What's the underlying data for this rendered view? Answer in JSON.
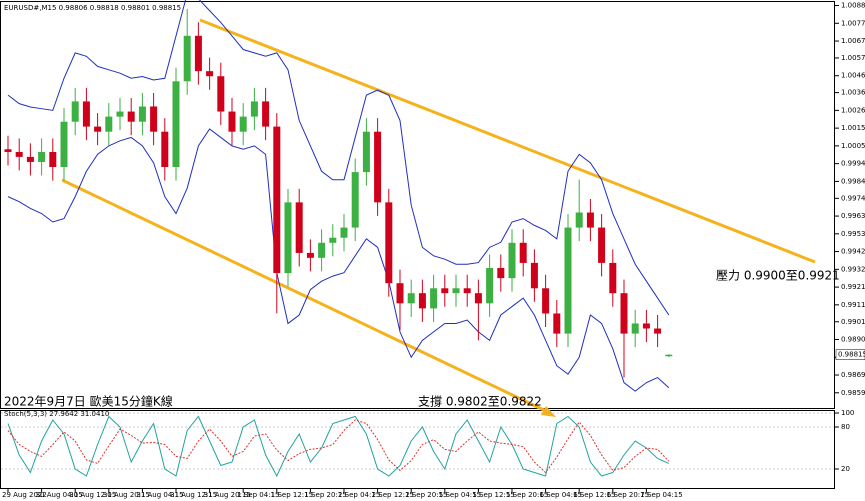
{
  "chart_data": [
    {
      "type": "candlestick",
      "title": "EURUSD#,M15  0.98806 0.98818 0.98801 0.98815",
      "annotations": [
        "2022年9月7日 歐美15分鐘K線",
        "壓力 0.9900至0.9921",
        "支撐 0.9802至0.9822"
      ],
      "last_price": 0.98815,
      "categories": [
        "29 Aug 2022",
        null,
        null,
        "30 Aug 04:15",
        null,
        null,
        "30 Aug 12:15",
        null,
        null,
        "30 Aug 20:15",
        null,
        null,
        "31 Aug 04:15",
        null,
        null,
        "31 Aug 12:15",
        null,
        null,
        "31 Aug 20:15",
        null,
        null,
        "1 Sep 04:15",
        null,
        null,
        "1 Sep 12:15",
        null,
        null,
        "1 Sep 20:15",
        null,
        null,
        "2 Sep 04:15",
        null,
        null,
        "2 Sep 12:15",
        null,
        null,
        "2 Sep 20:15",
        null,
        null,
        "5 Sep 04:15",
        null,
        null,
        "5 Sep 12:15",
        null,
        null,
        "5 Sep 20:15",
        null,
        null,
        "6 Sep 04:15",
        null,
        null,
        "6 Sep 12:15",
        null,
        null,
        "6 Sep 20:15",
        null,
        null,
        "7 Sep 04:15",
        null,
        null
      ],
      "open": [
        1.0003,
        1.00014,
        0.99985,
        0.99955,
        1.00014,
        0.99925,
        1.00193,
        1.00313,
        1.00164,
        1.00134,
        1.00223,
        1.00253,
        1.00193,
        1.00283,
        1.00134,
        0.99925,
        1.00432,
        1.00701,
        1.00492,
        1.00462,
        1.00253,
        1.00134,
        1.00223,
        1.00313,
        1.00164,
        0.99298,
        0.99716,
        0.99417,
        0.99388,
        0.99477,
        0.99507,
        0.99567,
        0.99895,
        1.00134,
        0.99716,
        0.99238,
        0.99119,
        0.99179,
        0.99089,
        0.99208,
        0.99179,
        0.99208,
        0.99179,
        0.99119,
        0.99328,
        0.99268,
        0.99477,
        0.99358,
        0.99208,
        0.99059,
        0.9894,
        0.99567,
        0.99656,
        0.99567,
        0.99358,
        0.99179,
        0.9894,
        0.99,
        0.9897,
        0.98806
      ],
      "high": [
        1.0011,
        1.00094,
        1.00065,
        1.00094,
        1.00094,
        1.00273,
        1.00393,
        1.00393,
        1.00244,
        1.00303,
        1.00333,
        1.00333,
        1.00363,
        1.00363,
        1.00214,
        1.00512,
        1.0086,
        1.00781,
        1.00572,
        1.00542,
        1.00333,
        1.00303,
        1.00393,
        1.00393,
        1.00244,
        0.99796,
        0.99796,
        0.99497,
        0.99557,
        0.99587,
        0.99647,
        0.99975,
        1.00214,
        1.00214,
        0.99796,
        0.99318,
        0.99259,
        0.99259,
        0.99288,
        0.99288,
        0.99288,
        0.99288,
        0.99259,
        0.99408,
        0.99408,
        0.99557,
        0.99557,
        0.99438,
        0.99288,
        0.99139,
        0.99647,
        0.9985,
        0.99736,
        0.99647,
        0.99438,
        0.99259,
        0.9908,
        0.9908,
        0.9905,
        0.98818
      ],
      "low": [
        0.99934,
        0.99905,
        0.99875,
        0.99875,
        0.99845,
        0.99845,
        1.00113,
        1.00084,
        1.00054,
        1.00054,
        1.00143,
        1.00113,
        1.00113,
        1.00054,
        0.99845,
        0.99845,
        1.00352,
        1.00412,
        1.00382,
        1.00173,
        1.00054,
        1.00054,
        1.00143,
        1.00084,
        0.9906,
        0.99218,
        0.99337,
        0.99308,
        0.99308,
        0.99397,
        0.99427,
        0.99487,
        0.99815,
        0.99636,
        0.99158,
        0.9896,
        0.99039,
        0.99009,
        0.99009,
        0.99099,
        0.99099,
        0.99099,
        0.989,
        0.99039,
        0.99188,
        0.99188,
        0.99278,
        0.99128,
        0.98979,
        0.9886,
        0.9886,
        0.99487,
        0.99487,
        0.99278,
        0.99099,
        0.9868,
        0.9886,
        0.9889,
        0.9886,
        0.98801
      ],
      "close": [
        1.00014,
        0.99985,
        0.99955,
        1.00014,
        0.99925,
        1.00193,
        1.00313,
        1.00164,
        1.00134,
        1.00223,
        1.00253,
        1.00193,
        1.00283,
        1.00134,
        0.99925,
        1.00432,
        1.00701,
        1.00492,
        1.00462,
        1.00253,
        1.00134,
        1.00223,
        1.00313,
        1.00164,
        0.99298,
        0.99716,
        0.99417,
        0.99388,
        0.99477,
        0.99507,
        0.99567,
        0.99895,
        1.00134,
        0.99716,
        0.99238,
        0.99119,
        0.99179,
        0.99089,
        0.99208,
        0.99179,
        0.99208,
        0.99179,
        0.99119,
        0.99328,
        0.99268,
        0.99477,
        0.99358,
        0.99208,
        0.99059,
        0.9894,
        0.99567,
        0.99656,
        0.99567,
        0.99358,
        0.99179,
        0.9894,
        0.99,
        0.9897,
        0.9894,
        0.98815
      ],
      "up_color": "#3cb043",
      "down_color": "#d0021b",
      "bands": {
        "color": "#1f2fbf",
        "upper": [
          1.0035,
          1.003,
          1.0028,
          1.0027,
          1.0026,
          1.0045,
          1.006,
          1.0058,
          1.0052,
          1.005,
          1.0048,
          1.0045,
          1.0046,
          1.0044,
          1.0045,
          1.007,
          1.0095,
          1.0092,
          1.0085,
          1.0078,
          1.007,
          1.0062,
          1.006,
          1.0058,
          1.006,
          1.005,
          1.002,
          1.0005,
          0.999,
          0.9985,
          0.9985,
          1.001,
          1.0035,
          1.0038,
          1.0035,
          1.002,
          0.997,
          0.9945,
          0.994,
          0.9938,
          0.9935,
          0.9935,
          0.9936,
          0.9945,
          0.9948,
          0.996,
          0.9962,
          0.9958,
          0.9955,
          0.995,
          0.999,
          1.0,
          0.9995,
          0.9985,
          0.9965,
          0.995,
          0.9935,
          0.9925,
          0.9915,
          0.9905
        ],
        "lower": [
          0.9975,
          0.9972,
          0.9968,
          0.9965,
          0.996,
          0.9962,
          0.9975,
          0.999,
          1.0,
          1.0005,
          1.0008,
          1.001,
          1.0005,
          0.9995,
          0.9975,
          0.9965,
          0.998,
          1.0005,
          1.0015,
          1.001,
          1.0005,
          1.0003,
          1.0005,
          1.0,
          0.993,
          0.99,
          0.9905,
          0.992,
          0.9925,
          0.9928,
          0.993,
          0.994,
          0.995,
          0.9945,
          0.9925,
          0.9895,
          0.988,
          0.989,
          0.9895,
          0.99,
          0.99,
          0.9902,
          0.9895,
          0.989,
          0.9905,
          0.991,
          0.9915,
          0.9905,
          0.989,
          0.9875,
          0.987,
          0.988,
          0.9905,
          0.99,
          0.9885,
          0.9865,
          0.986,
          0.9865,
          0.9868,
          0.9862
        ]
      },
      "ylim": [
        0.985,
        1.00895
      ],
      "yticks": [
        {
          "value": 1.0088,
          "label": "1.00880"
        },
        {
          "value": 1.00775,
          "label": "1.00775"
        },
        {
          "value": 1.0067,
          "label": "1.00670"
        },
        {
          "value": 1.0057,
          "label": "1.00570"
        },
        {
          "value": 1.00465,
          "label": "1.00465"
        },
        {
          "value": 1.00365,
          "label": "1.00365"
        },
        {
          "value": 1.0026,
          "label": "1.00260"
        },
        {
          "value": 1.00155,
          "label": "1.00155"
        },
        {
          "value": 1.0005,
          "label": "1.00050"
        },
        {
          "value": 0.99945,
          "label": "0.99945"
        },
        {
          "value": 0.9984,
          "label": "0.99840"
        },
        {
          "value": 0.9974,
          "label": "0.99740"
        },
        {
          "value": 0.99635,
          "label": "0.99635"
        },
        {
          "value": 0.9953,
          "label": "0.99530"
        },
        {
          "value": 0.99425,
          "label": "0.99425"
        },
        {
          "value": 0.9932,
          "label": "0.99320"
        },
        {
          "value": 0.99215,
          "label": "0.99215"
        },
        {
          "value": 0.9911,
          "label": "0.99110"
        },
        {
          "value": 0.9901,
          "label": "0.99010"
        },
        {
          "value": 0.98905,
          "label": "0.98905"
        },
        {
          "value": 0.988,
          "label": "0.98800"
        },
        {
          "value": 0.98695,
          "label": "0.98695"
        },
        {
          "value": 0.9859,
          "label": "0.98590"
        }
      ]
    },
    {
      "type": "line",
      "title": "Stoch(5,3,3) 27.9642 31.0410",
      "series": [
        {
          "name": "Main",
          "color": "#20a39e",
          "values": [
            85,
            40,
            15,
            60,
            90,
            70,
            20,
            10,
            55,
            95,
            80,
            30,
            60,
            85,
            20,
            10,
            75,
            95,
            60,
            25,
            30,
            80,
            90,
            40,
            10,
            45,
            70,
            30,
            50,
            85,
            90,
            95,
            70,
            20,
            10,
            25,
            60,
            80,
            45,
            20,
            70,
            90,
            60,
            30,
            80,
            55,
            20,
            15,
            10,
            85,
            95,
            80,
            30,
            10,
            15,
            40,
            60,
            50,
            35,
            27.9642
          ]
        },
        {
          "name": "Signal",
          "color": "#e0302a",
          "values": [
            75,
            55,
            45,
            38,
            55,
            73,
            60,
            33,
            28,
            53,
            77,
            68,
            57,
            58,
            55,
            38,
            35,
            60,
            77,
            60,
            38,
            45,
            67,
            70,
            47,
            32,
            42,
            48,
            50,
            55,
            75,
            90,
            85,
            62,
            33,
            18,
            32,
            55,
            62,
            48,
            45,
            60,
            73,
            60,
            57,
            55,
            52,
            30,
            15,
            37,
            63,
            87,
            68,
            40,
            18,
            22,
            38,
            50,
            48,
            31.041
          ]
        }
      ],
      "ylim": [
        0,
        100
      ],
      "yticks": [
        100,
        80,
        20
      ]
    }
  ]
}
